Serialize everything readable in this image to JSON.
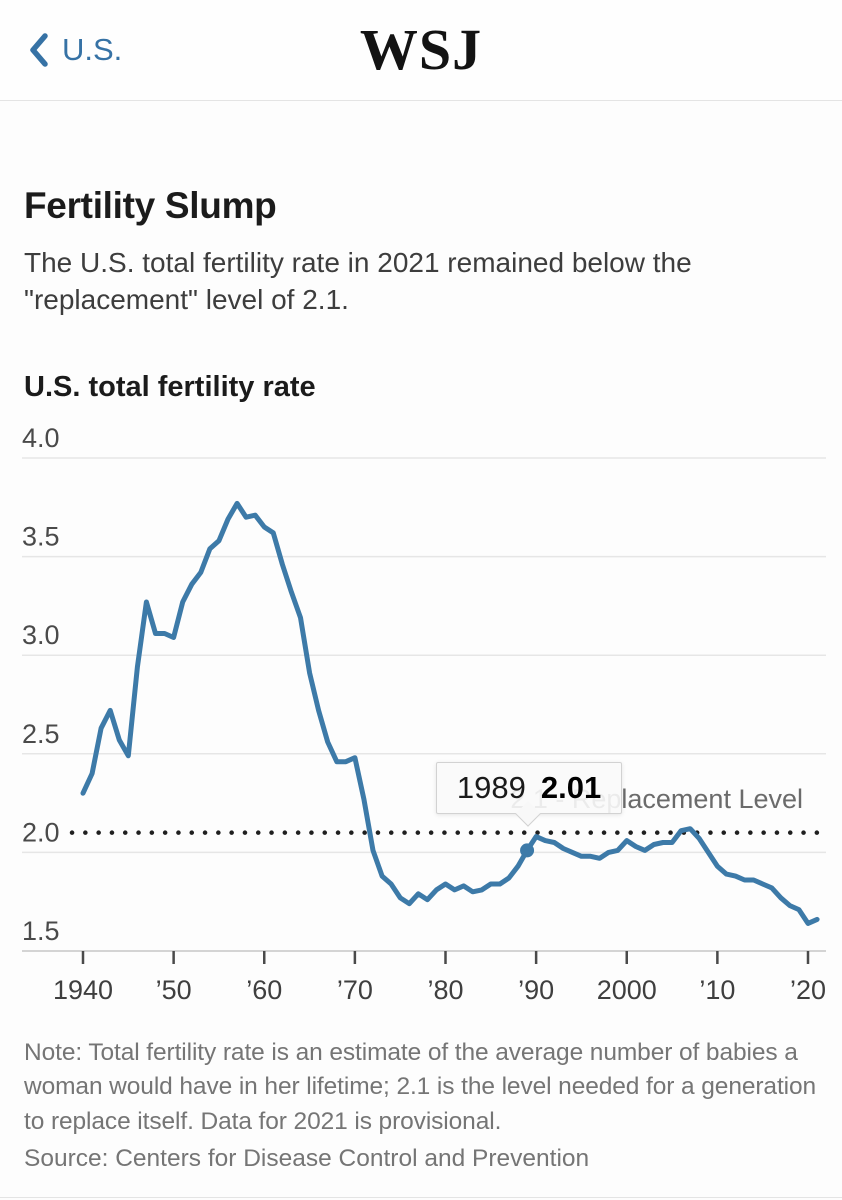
{
  "header": {
    "back_label": "U.S.",
    "logo": "WSJ"
  },
  "article": {
    "title": "Fertility Slump",
    "subtitle": "The U.S. total fertility rate in 2021 remained below the \"replacement\" level of 2.1."
  },
  "chart": {
    "kicker": "U.S. total fertility rate"
  },
  "chart_data": {
    "type": "line",
    "title": "U.S. total fertility rate",
    "x": [
      1940,
      1941,
      1942,
      1943,
      1944,
      1945,
      1946,
      1947,
      1948,
      1949,
      1950,
      1951,
      1952,
      1953,
      1954,
      1955,
      1956,
      1957,
      1958,
      1959,
      1960,
      1961,
      1962,
      1963,
      1964,
      1965,
      1966,
      1967,
      1968,
      1969,
      1970,
      1971,
      1972,
      1973,
      1974,
      1975,
      1976,
      1977,
      1978,
      1979,
      1980,
      1981,
      1982,
      1983,
      1984,
      1985,
      1986,
      1987,
      1988,
      1989,
      1990,
      1991,
      1992,
      1993,
      1994,
      1995,
      1996,
      1997,
      1998,
      1999,
      2000,
      2001,
      2002,
      2003,
      2004,
      2005,
      2006,
      2007,
      2008,
      2009,
      2010,
      2011,
      2012,
      2013,
      2014,
      2015,
      2016,
      2017,
      2018,
      2019,
      2020,
      2021
    ],
    "values": [
      2.3,
      2.4,
      2.63,
      2.72,
      2.57,
      2.49,
      2.94,
      3.27,
      3.11,
      3.11,
      3.09,
      3.27,
      3.36,
      3.42,
      3.54,
      3.58,
      3.69,
      3.77,
      3.7,
      3.71,
      3.65,
      3.62,
      3.46,
      3.32,
      3.19,
      2.91,
      2.72,
      2.56,
      2.46,
      2.46,
      2.48,
      2.27,
      2.01,
      1.88,
      1.84,
      1.77,
      1.74,
      1.79,
      1.76,
      1.81,
      1.84,
      1.81,
      1.83,
      1.8,
      1.81,
      1.84,
      1.84,
      1.87,
      1.93,
      2.01,
      2.08,
      2.06,
      2.05,
      2.02,
      2.0,
      1.98,
      1.98,
      1.97,
      2.0,
      2.01,
      2.06,
      2.03,
      2.01,
      2.04,
      2.05,
      2.05,
      2.11,
      2.12,
      2.07,
      2.0,
      1.93,
      1.89,
      1.88,
      1.86,
      1.86,
      1.84,
      1.82,
      1.77,
      1.73,
      1.71,
      1.64,
      1.66
    ],
    "ylim": [
      1.5,
      4.0
    ],
    "yticks": [
      1.5,
      2.0,
      2.5,
      3.0,
      3.5,
      4.0
    ],
    "ytick_labels": [
      "1.5",
      "2.0",
      "2.5",
      "3.0",
      "3.5",
      "4.0"
    ],
    "xticks": [
      1940,
      1950,
      1960,
      1970,
      1980,
      1990,
      2000,
      2010,
      2020
    ],
    "xtick_labels": [
      "1940",
      "’50",
      "’60",
      "’70",
      "’80",
      "’90",
      "2000",
      "’10",
      "’20"
    ],
    "grid": true,
    "legend": "none",
    "reference_line": {
      "value": 2.1,
      "label": "2.1 - Replacement Level"
    },
    "annotation": {
      "year": 1989,
      "value": 2.01,
      "label_year": "1989",
      "label_value": "2.01"
    },
    "line_color": "#3d7aa8"
  },
  "colors": {
    "accent_blue_line": "#3d7aa8",
    "link_blue": "#3672a5",
    "grid_gray": "#e6e6e6",
    "text_muted": "#757575"
  },
  "footer": {
    "note": "Note: Total fertility rate is an estimate of the average number of babies a woman would have in her lifetime; 2.1 is the level needed for a generation to replace itself. Data for 2021 is provisional.",
    "source": "Source: Centers for Disease Control and Prevention"
  }
}
